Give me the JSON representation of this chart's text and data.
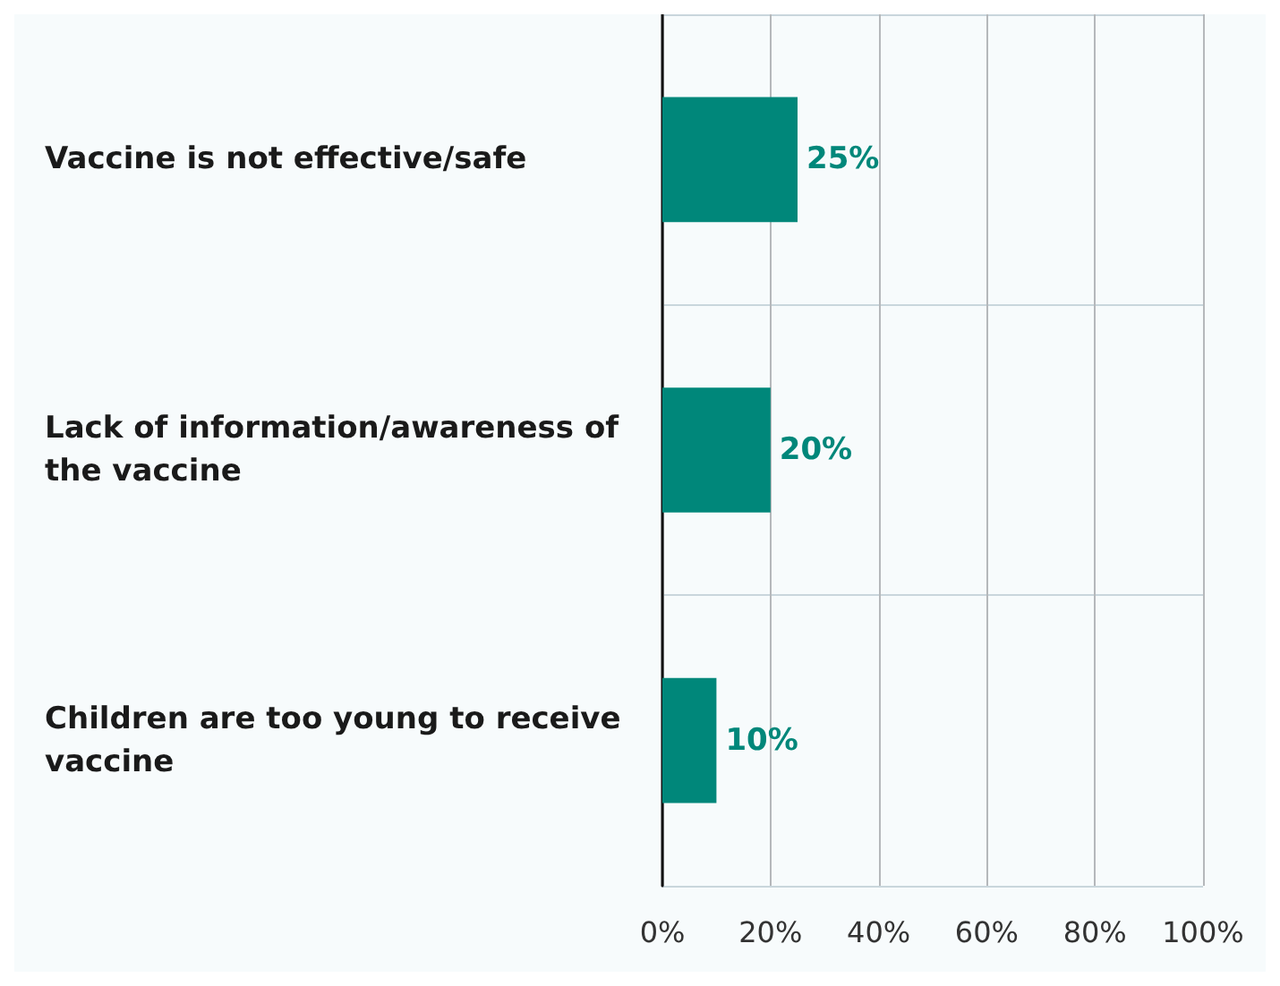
{
  "chart_data": {
    "type": "bar",
    "orientation": "horizontal",
    "categories": [
      "Vaccine is not effective/safe",
      "Lack of information/awareness of the vaccine",
      "Children are too young to receive vaccine"
    ],
    "values": [
      25,
      20,
      10
    ],
    "color": "#00877a",
    "value_labels": [
      "25%",
      "20%",
      "10%"
    ],
    "xlim": [
      0,
      100
    ],
    "xticks": [
      {
        "value": 0,
        "label": "0%"
      },
      {
        "value": 20,
        "label": "20%"
      },
      {
        "value": 40,
        "label": "40%"
      },
      {
        "value": 60,
        "label": "60%"
      },
      {
        "value": 80,
        "label": "80%"
      },
      {
        "value": 100,
        "label": "100%"
      }
    ],
    "grid": "x"
  }
}
